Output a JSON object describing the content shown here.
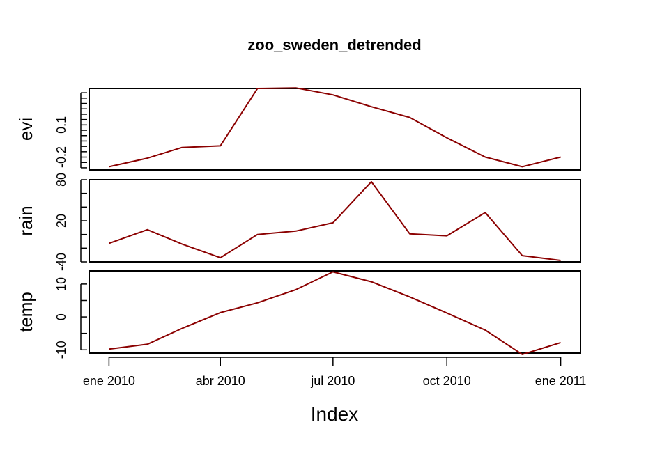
{
  "chart_data": {
    "type": "line",
    "title": "zoo_sweden_detrended",
    "xlabel": "Index",
    "line_color": "#8B0000",
    "x": [
      "2010-01-01",
      "2010-02-01",
      "2010-03-01",
      "2010-04-01",
      "2010-05-01",
      "2010-06-01",
      "2010-07-01",
      "2010-08-01",
      "2010-09-01",
      "2010-10-01",
      "2010-11-01",
      "2010-12-01",
      "2011-01-01"
    ],
    "xlim": [
      "2009-12-16",
      "2011-01-17"
    ],
    "x_ticks": [
      {
        "date": "2010-01-01",
        "label": "ene 2010"
      },
      {
        "date": "2010-04-01",
        "label": "abr 2010"
      },
      {
        "date": "2010-07-01",
        "label": "jul 2010"
      },
      {
        "date": "2010-10-01",
        "label": "oct 2010"
      },
      {
        "date": "2011-01-01",
        "label": "ene 2011"
      }
    ],
    "panels": [
      {
        "name": "evi",
        "ylabel": "evi",
        "ylim": [
          -0.32,
          0.44
        ],
        "y_ticks": [
          -0.35,
          -0.3,
          -0.25,
          -0.2,
          -0.15,
          -0.1,
          -0.05,
          0,
          0.05,
          0.1,
          0.15,
          0.2,
          0.25,
          0.3,
          0.35,
          0.4
        ],
        "tick_labels": [
          {
            "value": -0.2,
            "label": "-0.2"
          },
          {
            "value": 0.1,
            "label": "0.1"
          }
        ],
        "values": [
          -0.29,
          -0.21,
          -0.11,
          -0.095,
          0.44,
          0.445,
          0.38,
          0.27,
          0.17,
          -0.02,
          -0.2,
          -0.29,
          -0.2
        ]
      },
      {
        "name": "rain",
        "ylabel": "rain",
        "ylim": [
          -40,
          80
        ],
        "y_ticks": [
          -40,
          -20,
          0,
          20,
          40,
          60,
          80
        ],
        "tick_labels": [
          {
            "value": -40,
            "label": "-40"
          },
          {
            "value": 20,
            "label": "20"
          },
          {
            "value": 80,
            "label": "80"
          }
        ],
        "values": [
          -13,
          7,
          -14,
          -34,
          0,
          5,
          17,
          77,
          1,
          -2,
          32,
          -31,
          -38
        ]
      },
      {
        "name": "temp",
        "ylabel": "temp",
        "ylim": [
          -11,
          14
        ],
        "y_ticks": [
          -10,
          -5,
          0,
          5,
          10
        ],
        "tick_labels": [
          {
            "value": -10,
            "label": "-10"
          },
          {
            "value": 0,
            "label": "0"
          },
          {
            "value": 10,
            "label": "10"
          }
        ],
        "values": [
          -9.8,
          -8.3,
          -3.5,
          1.3,
          4.3,
          8.3,
          13.7,
          10.7,
          6.1,
          1.2,
          -4.0,
          -11.4,
          -7.8
        ]
      }
    ]
  }
}
